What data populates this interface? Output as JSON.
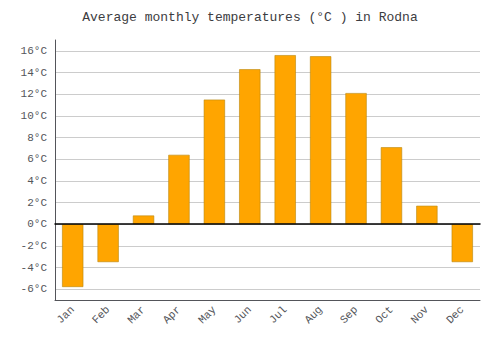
{
  "chart_data": {
    "type": "bar",
    "title": "Average monthly temperatures (°C ) in Rodna",
    "categories": [
      "Jan",
      "Feb",
      "Mar",
      "Apr",
      "May",
      "Jun",
      "Jul",
      "Aug",
      "Sep",
      "Oct",
      "Nov",
      "Dec"
    ],
    "values": [
      -5.8,
      -3.5,
      0.8,
      6.4,
      11.5,
      14.3,
      15.6,
      15.5,
      12.1,
      7.1,
      1.7,
      -3.5
    ],
    "color": "#FFA500",
    "ylim": [
      -7,
      17
    ],
    "yticks": [
      {
        "value": -6,
        "label": "-6°C"
      },
      {
        "value": -4,
        "label": "-4°C"
      },
      {
        "value": -2,
        "label": "-2°C"
      },
      {
        "value": 0,
        "label": "0°C"
      },
      {
        "value": 2,
        "label": "2°C"
      },
      {
        "value": 4,
        "label": "4°C"
      },
      {
        "value": 6,
        "label": "6°C"
      },
      {
        "value": 8,
        "label": "8°C"
      },
      {
        "value": 10,
        "label": "10°C"
      },
      {
        "value": 12,
        "label": "12°C"
      },
      {
        "value": 14,
        "label": "14°C"
      },
      {
        "value": 16,
        "label": "16°C"
      }
    ],
    "grid": true
  }
}
